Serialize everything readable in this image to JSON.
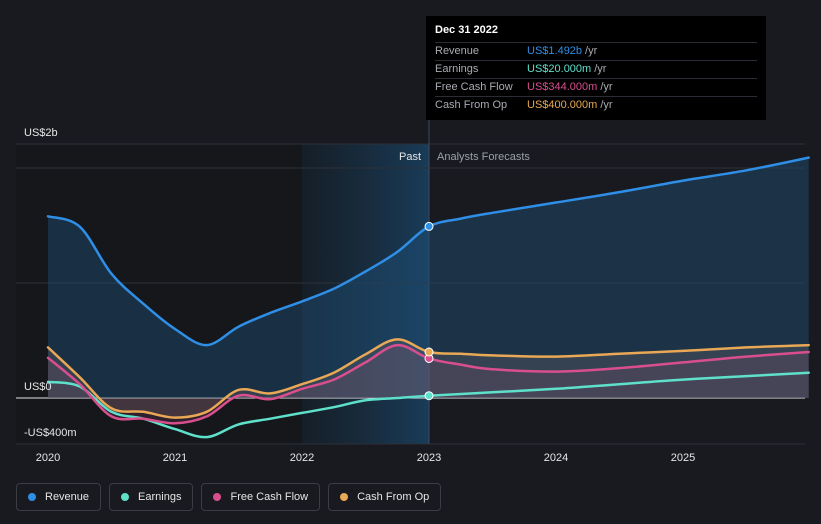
{
  "chart_data": {
    "type": "line",
    "y_axis": {
      "unit": "US$",
      "ticks": [
        {
          "value": 2000,
          "label": "US$2b"
        },
        {
          "value": 0,
          "label": "US$0"
        },
        {
          "value": -400,
          "label": "-US$400m"
        }
      ],
      "ylim": [
        -400,
        2000
      ]
    },
    "x_axis": {
      "ticks": [
        "2020",
        "2021",
        "2022",
        "2023",
        "2024",
        "2025"
      ],
      "xlim": [
        2019.77,
        2025.99
      ]
    },
    "regions": {
      "past_label": "Past",
      "forecast_label": "Analysts Forecasts",
      "divider_x": 2023.0,
      "highlight_start_x": 2022.0
    },
    "series": [
      {
        "name": "Revenue",
        "color": "#2f8ee6",
        "points": [
          [
            2020,
            1580
          ],
          [
            2020.25,
            1490
          ],
          [
            2020.5,
            1080
          ],
          [
            2020.75,
            820
          ],
          [
            2021,
            600
          ],
          [
            2021.25,
            460
          ],
          [
            2021.5,
            620
          ],
          [
            2021.75,
            740
          ],
          [
            2022,
            840
          ],
          [
            2022.25,
            950
          ],
          [
            2022.5,
            1100
          ],
          [
            2022.75,
            1270
          ],
          [
            2023,
            1492
          ],
          [
            2023.25,
            1560
          ],
          [
            2023.5,
            1610
          ],
          [
            2024,
            1700
          ],
          [
            2024.5,
            1790
          ],
          [
            2025,
            1890
          ],
          [
            2025.5,
            1980
          ],
          [
            2025.99,
            2090
          ]
        ]
      },
      {
        "name": "Earnings",
        "color": "#5ee0cb",
        "points": [
          [
            2020,
            140
          ],
          [
            2020.25,
            100
          ],
          [
            2020.5,
            -120
          ],
          [
            2020.75,
            -180
          ],
          [
            2021,
            -270
          ],
          [
            2021.25,
            -340
          ],
          [
            2021.5,
            -230
          ],
          [
            2021.75,
            -180
          ],
          [
            2022,
            -130
          ],
          [
            2022.25,
            -80
          ],
          [
            2022.5,
            -20
          ],
          [
            2022.75,
            0
          ],
          [
            2023,
            20
          ],
          [
            2023.5,
            50
          ],
          [
            2024,
            80
          ],
          [
            2024.5,
            120
          ],
          [
            2025,
            160
          ],
          [
            2025.5,
            190
          ],
          [
            2025.99,
            220
          ]
        ]
      },
      {
        "name": "Free Cash Flow",
        "color": "#d94f8e",
        "points": [
          [
            2020,
            350
          ],
          [
            2020.25,
            120
          ],
          [
            2020.5,
            -160
          ],
          [
            2020.75,
            -180
          ],
          [
            2021,
            -220
          ],
          [
            2021.25,
            -160
          ],
          [
            2021.5,
            20
          ],
          [
            2021.75,
            -10
          ],
          [
            2022,
            80
          ],
          [
            2022.25,
            160
          ],
          [
            2022.5,
            310
          ],
          [
            2022.75,
            460
          ],
          [
            2023,
            344
          ],
          [
            2023.25,
            290
          ],
          [
            2023.5,
            250
          ],
          [
            2024,
            230
          ],
          [
            2024.5,
            260
          ],
          [
            2025,
            310
          ],
          [
            2025.5,
            360
          ],
          [
            2025.99,
            400
          ]
        ]
      },
      {
        "name": "Cash From Op",
        "color": "#e8a855",
        "points": [
          [
            2020,
            440
          ],
          [
            2020.25,
            180
          ],
          [
            2020.5,
            -90
          ],
          [
            2020.75,
            -120
          ],
          [
            2021,
            -170
          ],
          [
            2021.25,
            -120
          ],
          [
            2021.5,
            70
          ],
          [
            2021.75,
            40
          ],
          [
            2022,
            120
          ],
          [
            2022.25,
            220
          ],
          [
            2022.5,
            380
          ],
          [
            2022.75,
            510
          ],
          [
            2023,
            400
          ],
          [
            2023.25,
            385
          ],
          [
            2023.5,
            370
          ],
          [
            2024,
            360
          ],
          [
            2024.5,
            385
          ],
          [
            2025,
            410
          ],
          [
            2025.5,
            440
          ],
          [
            2025.99,
            460
          ]
        ]
      }
    ],
    "highlight_points_x": 2023.0
  },
  "tooltip": {
    "date": "Dec 31 2022",
    "rows": [
      {
        "label": "Revenue",
        "value": "US$1.492b",
        "unit": "/yr",
        "color": "#2f8ee6"
      },
      {
        "label": "Earnings",
        "value": "US$20.000m",
        "unit": "/yr",
        "color": "#5ee0cb"
      },
      {
        "label": "Free Cash Flow",
        "value": "US$344.000m",
        "unit": "/yr",
        "color": "#d94f8e"
      },
      {
        "label": "Cash From Op",
        "value": "US$400.000m",
        "unit": "/yr",
        "color": "#e8a855"
      }
    ]
  },
  "legend": [
    {
      "label": "Revenue",
      "color": "#2f8ee6"
    },
    {
      "label": "Earnings",
      "color": "#5ee0cb"
    },
    {
      "label": "Free Cash Flow",
      "color": "#d94f8e"
    },
    {
      "label": "Cash From Op",
      "color": "#e8a855"
    }
  ]
}
